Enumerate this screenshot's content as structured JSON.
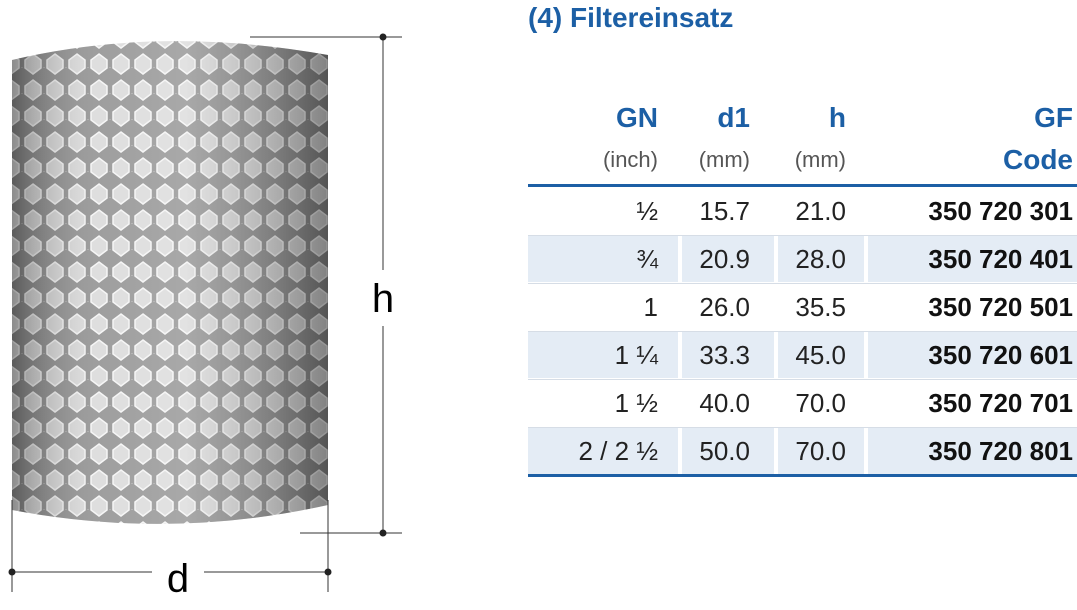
{
  "title": "(4) Filtereinsatz",
  "dimensions": {
    "height": "h",
    "diameter": "d"
  },
  "table": {
    "header": [
      [
        "GN",
        "(inch)"
      ],
      [
        "d1",
        "(mm)"
      ],
      [
        "h",
        "(mm)"
      ],
      [
        "GF",
        "Code"
      ]
    ],
    "rows": [
      [
        "½",
        "15.7",
        "21.0",
        "350 720 301"
      ],
      [
        "¾",
        "20.9",
        "28.0",
        "350 720 401"
      ],
      [
        "1",
        "26.0",
        "35.5",
        "350 720 501"
      ],
      [
        "1 ¼",
        "33.3",
        "45.0",
        "350 720 601"
      ],
      [
        "1 ½",
        "40.0",
        "70.0",
        "350 720 701"
      ],
      [
        "2 / 2 ½",
        "50.0",
        "70.0",
        "350 720 801"
      ]
    ]
  }
}
